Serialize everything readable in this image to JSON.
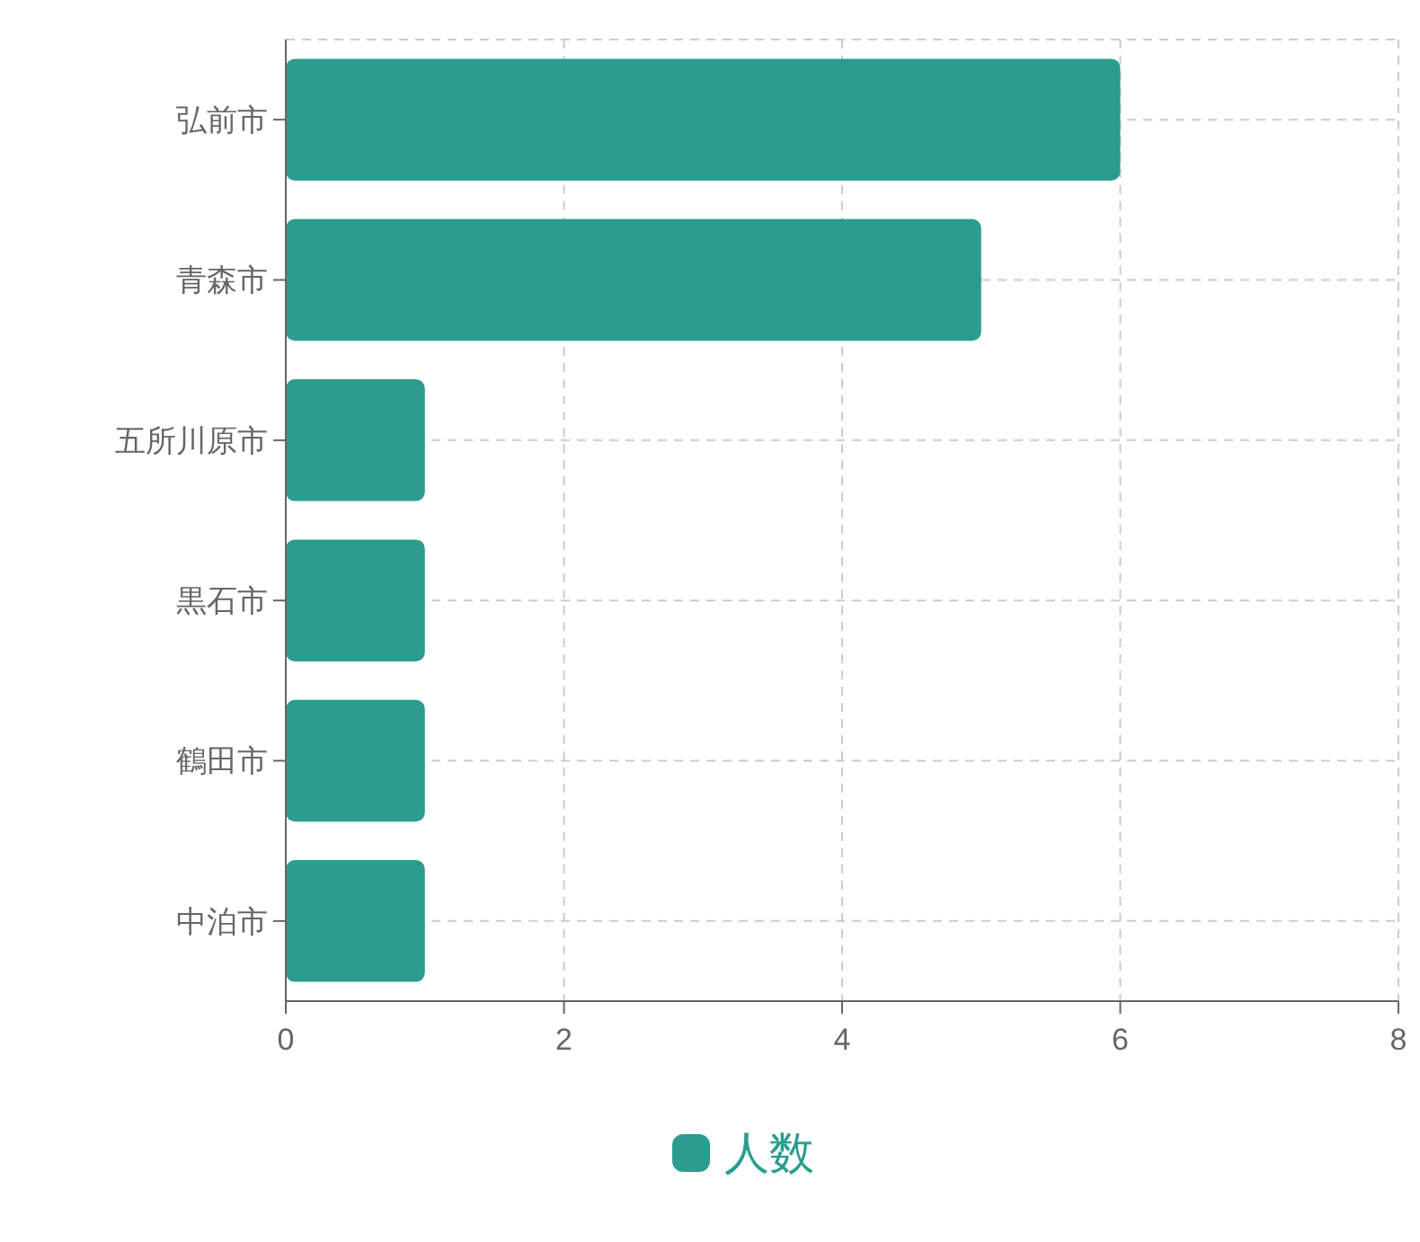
{
  "chart_data": {
    "type": "bar",
    "orientation": "horizontal",
    "categories": [
      "弘前市",
      "青森市",
      "五所川原市",
      "黒石市",
      "鶴田市",
      "中泊市"
    ],
    "series": [
      {
        "name": "人数",
        "color": "#2a9d8f",
        "values": [
          6,
          5,
          1,
          1,
          1,
          1
        ]
      }
    ],
    "xlim": [
      0,
      8
    ],
    "xticks": [
      0,
      2,
      4,
      6,
      8
    ],
    "grid": true,
    "legend": "bottom"
  }
}
